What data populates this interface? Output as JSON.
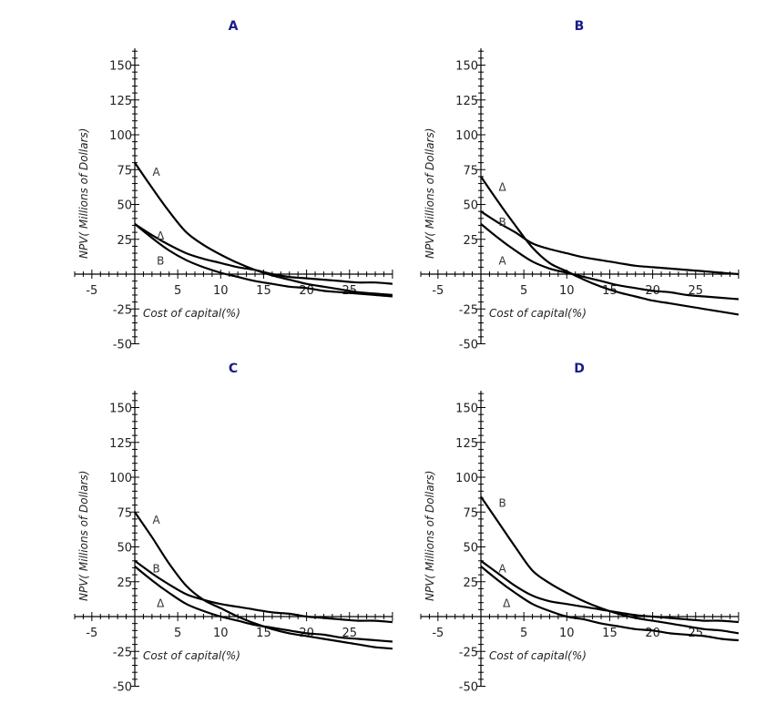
{
  "chart_data": [
    {
      "type": "line",
      "title": "A",
      "xlabel": "Cost of capital(%)",
      "ylabel": "NPV( Millions of Dollars)",
      "xlim": [
        -7,
        30
      ],
      "ylim": [
        -50,
        162
      ],
      "xticks": [
        -5,
        5,
        10,
        15,
        20,
        25
      ],
      "yticks": [
        -50,
        -25,
        25,
        50,
        75,
        100,
        125,
        150
      ],
      "x": [
        0,
        2,
        4,
        6,
        8,
        10,
        12,
        14,
        16,
        18,
        20,
        22,
        24,
        26,
        28,
        30
      ],
      "series": [
        {
          "name": "A",
          "values": [
            80,
            62,
            45,
            30,
            21,
            14,
            8,
            3,
            -1,
            -4,
            -7,
            -9,
            -11,
            -13,
            -14,
            -15
          ]
        },
        {
          "name": "Δ",
          "values": [
            36,
            28,
            21,
            15,
            11,
            8,
            5,
            3,
            0,
            -2,
            -3,
            -4,
            -5,
            -6,
            -6,
            -7
          ]
        },
        {
          "name": "B",
          "values": [
            36,
            26,
            17,
            10,
            5,
            1,
            -2,
            -5,
            -7,
            -9,
            -10,
            -12,
            -13,
            -14,
            -15,
            -16
          ]
        }
      ],
      "curve_labels": [
        {
          "text": "A",
          "x": 2.5,
          "y": 74
        },
        {
          "text": "Δ",
          "x": 3,
          "y": 28
        },
        {
          "text": "B",
          "x": 3,
          "y": 10
        }
      ]
    },
    {
      "type": "line",
      "title": "B",
      "xlabel": "Cost of capital(%)",
      "ylabel": "NPV( Millions of Dollars)",
      "xlim": [
        -7,
        30
      ],
      "ylim": [
        -50,
        162
      ],
      "xticks": [
        -5,
        5,
        10,
        15,
        20,
        25
      ],
      "yticks": [
        -50,
        -25,
        25,
        50,
        75,
        100,
        125,
        150
      ],
      "x": [
        0,
        2,
        4,
        6,
        8,
        10,
        12,
        14,
        16,
        18,
        20,
        22,
        24,
        26,
        28,
        30
      ],
      "series": [
        {
          "name": "Δ",
          "values": [
            70,
            52,
            35,
            19,
            8,
            2,
            -4,
            -9,
            -13,
            -16,
            -19,
            -21,
            -23,
            -25,
            -27,
            -29
          ]
        },
        {
          "name": "B",
          "values": [
            45,
            37,
            30,
            22,
            18,
            15,
            12,
            10,
            8,
            6,
            5,
            4,
            3,
            2,
            1,
            0
          ]
        },
        {
          "name": "A",
          "values": [
            36,
            26,
            17,
            9,
            4,
            1,
            -2,
            -5,
            -8,
            -10,
            -12,
            -13,
            -15,
            -16,
            -17,
            -18
          ]
        }
      ],
      "curve_labels": [
        {
          "text": "Δ",
          "x": 2.5,
          "y": 63
        },
        {
          "text": "B",
          "x": 2.5,
          "y": 38
        },
        {
          "text": "A",
          "x": 2.5,
          "y": 10
        }
      ]
    },
    {
      "type": "line",
      "title": "C",
      "xlabel": "Cost of capital(%)",
      "ylabel": "NPV( Millions of Dollars)",
      "xlim": [
        -7,
        30
      ],
      "ylim": [
        -50,
        162
      ],
      "xticks": [
        -5,
        5,
        10,
        15,
        20,
        25
      ],
      "yticks": [
        -50,
        -25,
        25,
        50,
        75,
        100,
        125,
        150
      ],
      "x": [
        0,
        2,
        4,
        6,
        8,
        10,
        12,
        14,
        16,
        18,
        20,
        22,
        24,
        26,
        28,
        30
      ],
      "series": [
        {
          "name": "A",
          "values": [
            75,
            57,
            38,
            22,
            12,
            6,
            0,
            -5,
            -9,
            -12,
            -14,
            -16,
            -18,
            -20,
            -22,
            -23
          ]
        },
        {
          "name": "B",
          "values": [
            40,
            31,
            23,
            16,
            12,
            9,
            7,
            5,
            3,
            2,
            0,
            -1,
            -2,
            -3,
            -3,
            -4
          ]
        },
        {
          "name": "Δ",
          "values": [
            36,
            26,
            17,
            9,
            4,
            0,
            -3,
            -6,
            -8,
            -10,
            -12,
            -13,
            -15,
            -16,
            -17,
            -18
          ]
        }
      ],
      "curve_labels": [
        {
          "text": "A",
          "x": 2.5,
          "y": 70
        },
        {
          "text": "B",
          "x": 2.5,
          "y": 35
        },
        {
          "text": "Δ",
          "x": 3,
          "y": 10
        }
      ]
    },
    {
      "type": "line",
      "title": "D",
      "xlabel": "Cost of capital(%)",
      "ylabel": "NPV( Millions of Dollars)",
      "xlim": [
        -7,
        30
      ],
      "ylim": [
        -50,
        162
      ],
      "xticks": [
        -5,
        5,
        10,
        15,
        20,
        25
      ],
      "yticks": [
        -50,
        -25,
        25,
        50,
        75,
        100,
        125,
        150
      ],
      "x": [
        0,
        2,
        4,
        6,
        8,
        10,
        12,
        14,
        16,
        18,
        20,
        22,
        24,
        26,
        28,
        30
      ],
      "series": [
        {
          "name": "B",
          "values": [
            86,
            68,
            50,
            33,
            24,
            17,
            11,
            6,
            2,
            -1,
            -3,
            -5,
            -7,
            -9,
            -10,
            -12
          ]
        },
        {
          "name": "A",
          "values": [
            40,
            31,
            22,
            15,
            11,
            9,
            7,
            5,
            3,
            1,
            0,
            -1,
            -2,
            -3,
            -3,
            -4
          ]
        },
        {
          "name": "Δ",
          "values": [
            36,
            26,
            17,
            9,
            4,
            0,
            -2,
            -5,
            -7,
            -9,
            -10,
            -12,
            -13,
            -14,
            -16,
            -17
          ]
        }
      ],
      "curve_labels": [
        {
          "text": "B",
          "x": 2.5,
          "y": 82
        },
        {
          "text": "A",
          "x": 2.5,
          "y": 35
        },
        {
          "text": "Δ",
          "x": 3,
          "y": 10
        }
      ]
    }
  ]
}
